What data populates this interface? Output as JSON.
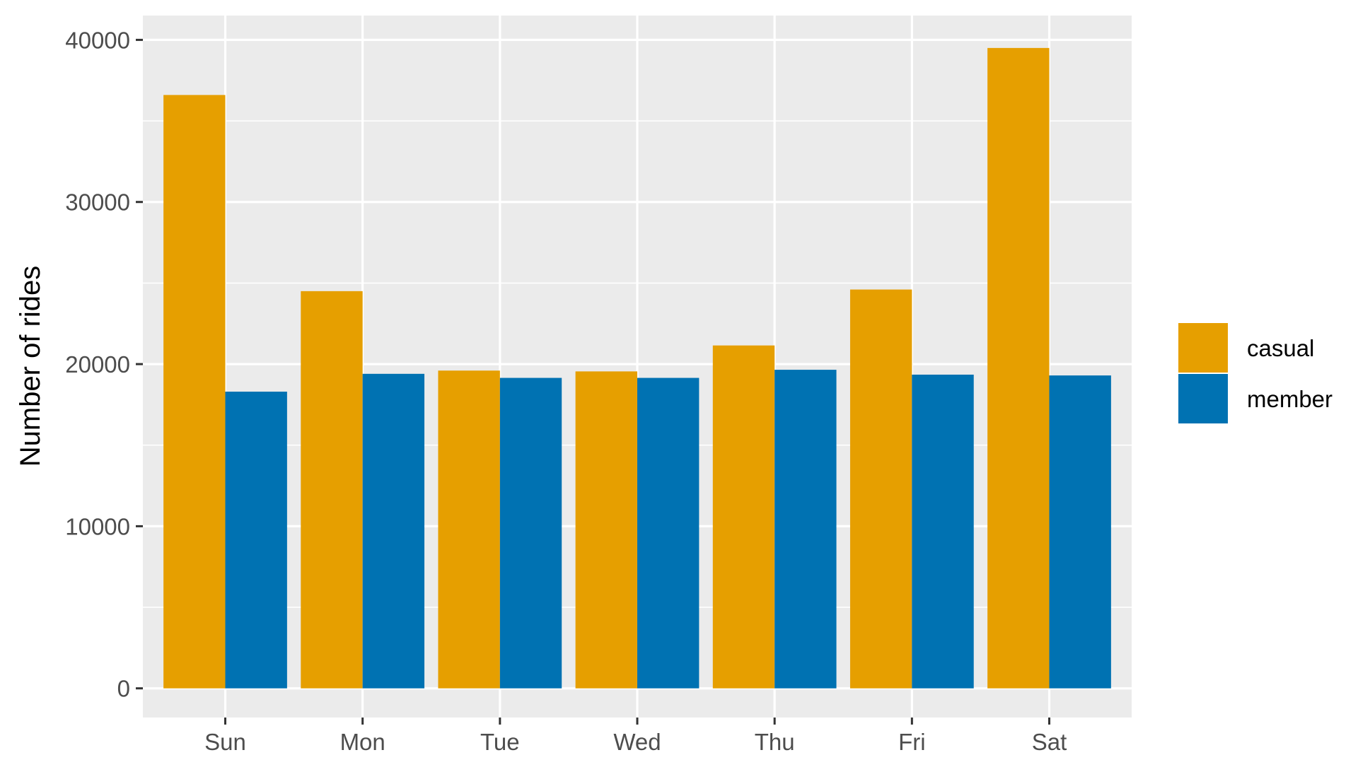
{
  "chart_data": {
    "type": "bar",
    "title": "",
    "xlabel": "",
    "ylabel": "Number of rides",
    "ylim": [
      -1800,
      41500
    ],
    "yticks": [
      0,
      10000,
      20000,
      30000,
      40000
    ],
    "ytick_labels": [
      "0",
      "10000",
      "20000",
      "30000",
      "40000"
    ],
    "categories": [
      "Sun",
      "Mon",
      "Tue",
      "Wed",
      "Thu",
      "Fri",
      "Sat"
    ],
    "series": [
      {
        "name": "casual",
        "color": "#E69F00",
        "values": [
          36600,
          24500,
          19600,
          19550,
          21150,
          24600,
          39500
        ]
      },
      {
        "name": "member",
        "color": "#0072B2",
        "values": [
          18300,
          19400,
          19150,
          19150,
          19650,
          19350,
          19300
        ]
      }
    ],
    "grid": true,
    "legend_position": "right",
    "panel_background": "#EBEBEB",
    "grid_color": "#FFFFFF"
  }
}
